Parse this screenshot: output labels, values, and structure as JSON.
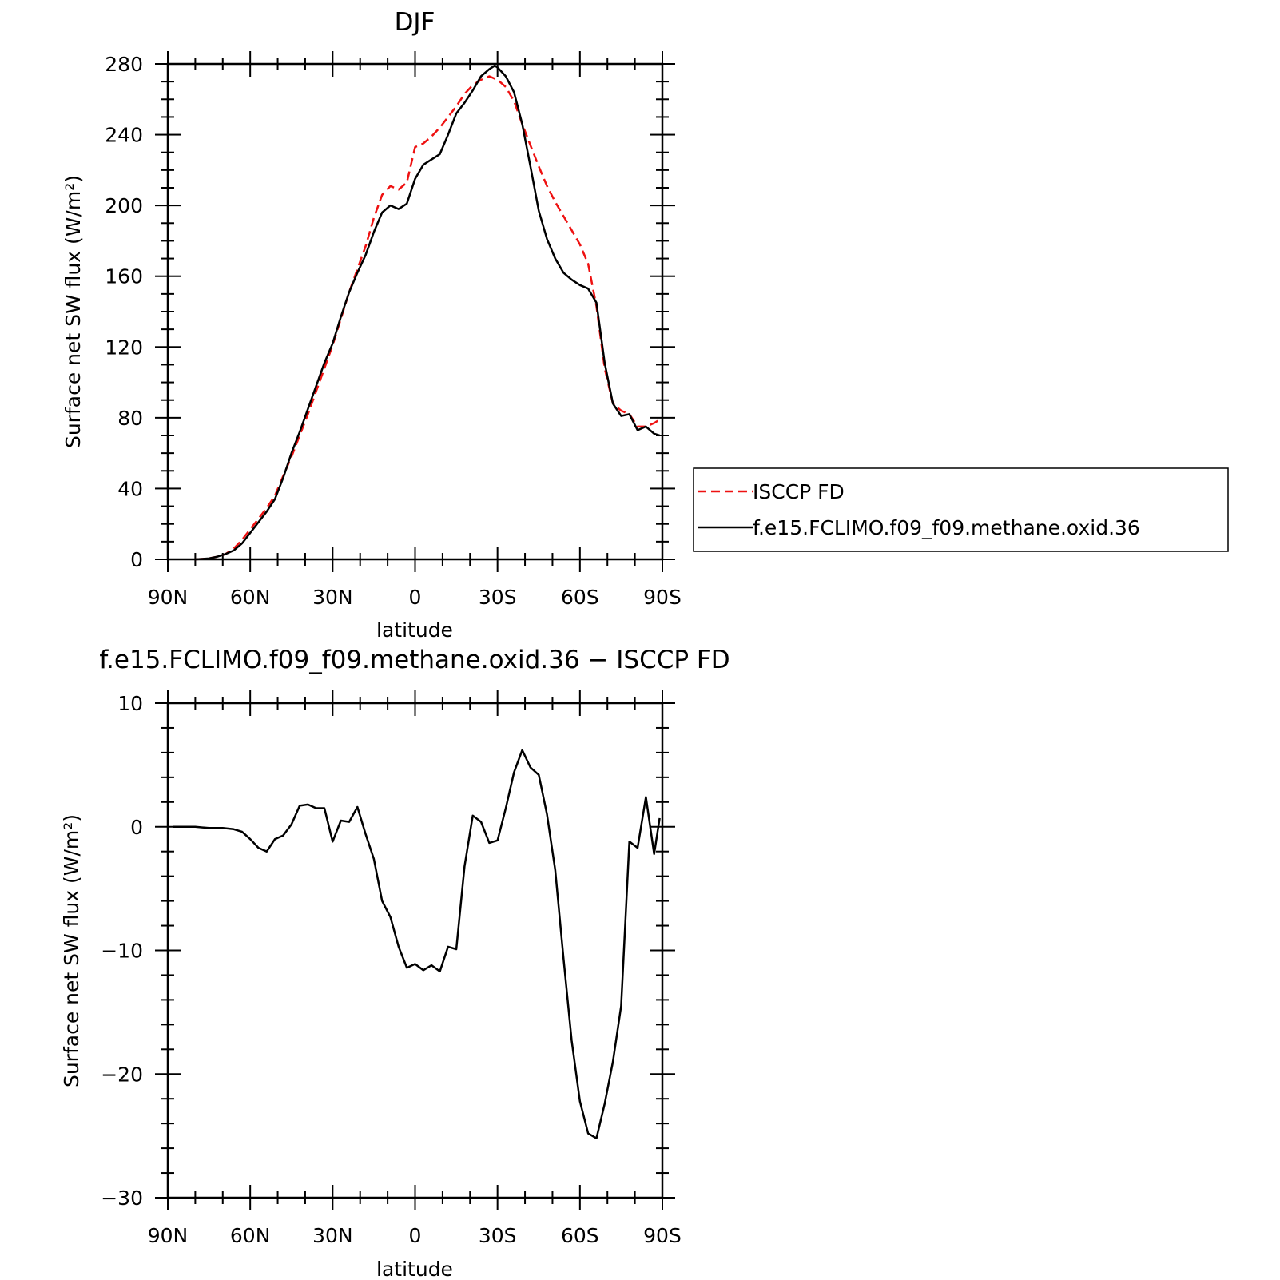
{
  "chart_data": [
    {
      "type": "line",
      "title": "DJF",
      "xlabel": "latitude",
      "ylabel": "Surface net SW flux (W/m²)",
      "xlim": [
        -90,
        90
      ],
      "ylim": [
        0,
        280
      ],
      "x_ticks": [
        {
          "value": -90,
          "label": "90N"
        },
        {
          "value": -60,
          "label": "60N"
        },
        {
          "value": -30,
          "label": "30N"
        },
        {
          "value": 0,
          "label": "0"
        },
        {
          "value": 30,
          "label": "30S"
        },
        {
          "value": 60,
          "label": "60S"
        },
        {
          "value": 90,
          "label": "90S"
        }
      ],
      "y_ticks": [
        {
          "value": 0,
          "label": "0"
        },
        {
          "value": 40,
          "label": "40"
        },
        {
          "value": 80,
          "label": "80"
        },
        {
          "value": 120,
          "label": "120"
        },
        {
          "value": 160,
          "label": "160"
        },
        {
          "value": 200,
          "label": "200"
        },
        {
          "value": 240,
          "label": "240"
        },
        {
          "value": 280,
          "label": "280"
        }
      ],
      "legend_position": "right",
      "series": [
        {
          "name": "ISCCP FD",
          "color": "#ee1111",
          "dash": "dashed",
          "x": [
            -80,
            -75,
            -72,
            -69,
            -66,
            -63,
            -60,
            -57,
            -54,
            -51,
            -48,
            -45,
            -42,
            -39,
            -36,
            -33,
            -30,
            -27,
            -24,
            -21,
            -18,
            -15,
            -12,
            -9,
            -6,
            -3,
            0,
            3,
            6,
            9,
            12,
            15,
            18,
            21,
            24,
            27,
            30,
            33,
            36,
            39,
            42,
            45,
            48,
            51,
            54,
            57,
            60,
            63,
            66,
            69,
            72,
            75,
            78,
            81,
            84,
            87,
            89
          ],
          "y": [
            0,
            0.5,
            1.5,
            3,
            6,
            11,
            17,
            23,
            29,
            36,
            47,
            58,
            70,
            82,
            95,
            108,
            121,
            136,
            151,
            164,
            177,
            193,
            206,
            211,
            209,
            213,
            233,
            235,
            239,
            244,
            250,
            256,
            263,
            268,
            271,
            273,
            271,
            267,
            259,
            246,
            234,
            222,
            211,
            202,
            194,
            186,
            178,
            167,
            143,
            108,
            88,
            84,
            82,
            75,
            75,
            77,
            79
          ]
        },
        {
          "name": "f.e15.FCLIMO.f09_f09.methane.oxid.36",
          "color": "#000000",
          "dash": "solid",
          "x": [
            -80,
            -75,
            -72,
            -69,
            -66,
            -63,
            -60,
            -57,
            -54,
            -51,
            -48,
            -45,
            -42,
            -39,
            -36,
            -33,
            -30,
            -27,
            -24,
            -21,
            -18,
            -15,
            -12,
            -9,
            -6,
            -3,
            0,
            3,
            6,
            9,
            12,
            15,
            18,
            21,
            24,
            27,
            29,
            30,
            33,
            36,
            39,
            42,
            45,
            48,
            51,
            54,
            57,
            60,
            63,
            66,
            69,
            72,
            75,
            78,
            81,
            84,
            87,
            89
          ],
          "y": [
            0,
            0.5,
            1.5,
            3,
            5,
            9,
            15,
            21,
            27,
            34,
            46,
            60,
            72,
            85,
            98,
            111,
            122,
            137,
            151,
            162,
            172,
            185,
            196,
            200,
            198,
            201,
            215,
            223,
            226,
            229,
            240,
            252,
            258,
            265,
            273,
            277,
            279,
            278,
            273,
            264,
            246,
            222,
            197,
            181,
            170,
            162,
            158,
            155,
            153,
            145,
            111,
            88,
            81,
            82,
            73,
            75,
            71,
            70
          ]
        }
      ]
    },
    {
      "type": "line",
      "title": "f.e15.FCLIMO.f09_f09.methane.oxid.36 − ISCCP FD",
      "xlabel": "latitude",
      "ylabel": "Surface net SW flux (W/m²)",
      "xlim": [
        -90,
        90
      ],
      "ylim": [
        -30,
        10
      ],
      "x_ticks": [
        {
          "value": -90,
          "label": "90N"
        },
        {
          "value": -60,
          "label": "60N"
        },
        {
          "value": -30,
          "label": "30N"
        },
        {
          "value": 0,
          "label": "0"
        },
        {
          "value": 30,
          "label": "30S"
        },
        {
          "value": 60,
          "label": "60S"
        },
        {
          "value": 90,
          "label": "90S"
        }
      ],
      "y_ticks": [
        {
          "value": -30,
          "label": "−30"
        },
        {
          "value": -20,
          "label": "−20"
        },
        {
          "value": -10,
          "label": "−10"
        },
        {
          "value": 0,
          "label": "0"
        },
        {
          "value": 10,
          "label": "10"
        }
      ],
      "series": [
        {
          "color": "#000000",
          "dash": "solid",
          "x": [
            -88,
            -80,
            -75,
            -70,
            -66,
            -63,
            -60,
            -57,
            -54,
            -51,
            -48,
            -45,
            -42,
            -39,
            -36,
            -33,
            -30,
            -27,
            -24,
            -21,
            -18,
            -15,
            -12,
            -9,
            -6,
            -3,
            0,
            3,
            6,
            9,
            12,
            15,
            18,
            21,
            24,
            27,
            30,
            33,
            36,
            39,
            42,
            45,
            48,
            51,
            54,
            57,
            60,
            63,
            66,
            69,
            72,
            75,
            78,
            81,
            84,
            87,
            89
          ],
          "y": [
            0,
            0,
            -0.1,
            -0.1,
            -0.2,
            -0.4,
            -1.0,
            -1.7,
            -2.0,
            -1.0,
            -0.7,
            0.2,
            1.7,
            1.8,
            1.5,
            1.5,
            -1.2,
            0.5,
            0.4,
            1.6,
            -0.6,
            -2.6,
            -6.0,
            -7.3,
            -9.7,
            -11.4,
            -11.1,
            -11.6,
            -11.2,
            -11.7,
            -9.7,
            -9.9,
            -3.2,
            0.9,
            0.4,
            -1.3,
            -1.1,
            1.5,
            4.4,
            6.2,
            4.8,
            4.2,
            1.0,
            -3.5,
            -10.6,
            -17.3,
            -22.2,
            -24.8,
            -25.2,
            -22.4,
            -19.0,
            -14.5,
            -1.2,
            -1.7,
            2.4,
            -2.2,
            0.7
          ]
        }
      ]
    }
  ]
}
